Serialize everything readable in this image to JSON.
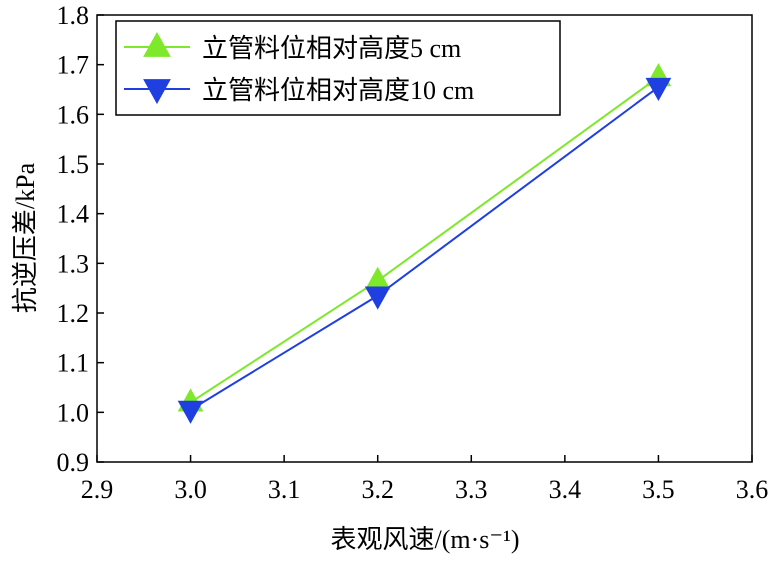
{
  "chart_data": {
    "type": "line",
    "xlabel": "表观风速/(m·s⁻¹)",
    "ylabel": "抗逆压差/kPa",
    "xlim": [
      2.9,
      3.6
    ],
    "ylim": [
      0.9,
      1.8
    ],
    "xticks": [
      2.9,
      3.0,
      3.1,
      3.2,
      3.3,
      3.4,
      3.5,
      3.6
    ],
    "yticks": [
      0.9,
      1.0,
      1.1,
      1.2,
      1.3,
      1.4,
      1.5,
      1.6,
      1.7,
      1.8
    ],
    "xtick_labels": [
      "2.9",
      "3.0",
      "3.1",
      "3.2",
      "3.3",
      "3.4",
      "3.5",
      "3.6"
    ],
    "ytick_labels": [
      "0.9",
      "1.0",
      "1.1",
      "1.2",
      "1.3",
      "1.4",
      "1.5",
      "1.6",
      "1.7",
      "1.8"
    ],
    "grid": false,
    "legend_position": "top-left",
    "series": [
      {
        "name": "立管料位相对高度5 cm",
        "marker": "triangle-up",
        "color": "#7ee82a",
        "x": [
          3.0,
          3.2,
          3.5
        ],
        "y": [
          1.02,
          1.265,
          1.675
        ]
      },
      {
        "name": "立管料位相对高度10 cm",
        "marker": "triangle-down",
        "color": "#1f3fe0",
        "x": [
          3.0,
          3.2,
          3.5
        ],
        "y": [
          1.005,
          1.235,
          1.655
        ]
      }
    ]
  }
}
